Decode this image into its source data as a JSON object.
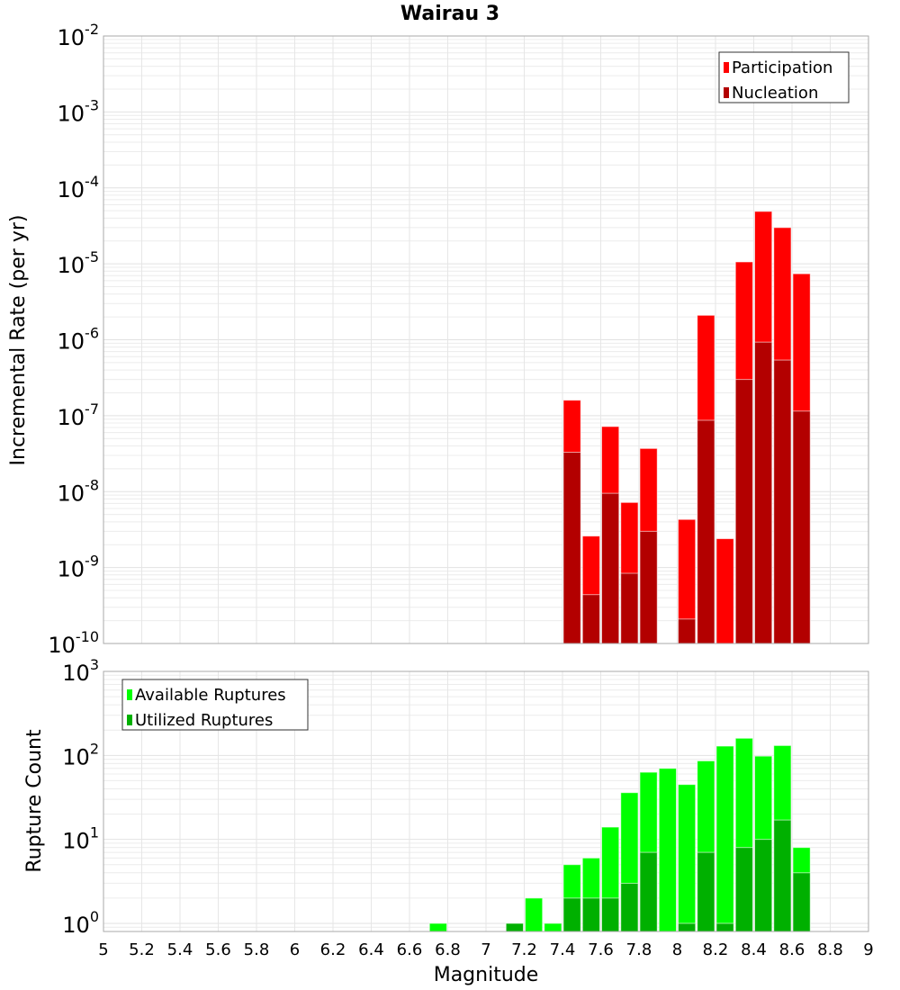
{
  "chart_data": [
    {
      "type": "bar",
      "title": "Wairau 3",
      "xlabel": "",
      "ylabel": "Incremental Rate (per yr)",
      "yscale": "log",
      "ylim": [
        1e-10,
        0.01
      ],
      "xlim": [
        5,
        9
      ],
      "bin_width": 0.1,
      "grid": true,
      "legend_position": "top-right",
      "x": [
        7.45,
        7.55,
        7.65,
        7.75,
        7.85,
        7.95,
        8.05,
        8.15,
        8.25,
        8.35,
        8.45,
        8.55,
        8.65
      ],
      "series": [
        {
          "name": "Participation",
          "color": "#ff0000",
          "values": [
            1.6e-07,
            2.6e-09,
            7.2e-08,
            7.2e-09,
            3.7e-08,
            null,
            4.3e-09,
            2.1e-06,
            2.4e-09,
            1.06e-05,
            4.9e-05,
            3e-05,
            7.4e-06
          ]
        },
        {
          "name": "Nucleation",
          "color": "#b30000",
          "values": [
            3.3e-08,
            4.4e-10,
            9.5e-09,
            8.4e-10,
            3e-09,
            null,
            2.1e-10,
            8.7e-08,
            null,
            3e-07,
            9.3e-07,
            5.4e-07,
            1.15e-07
          ]
        }
      ],
      "ytick_exponents": [
        "-2",
        "-3",
        "-4",
        "-5",
        "-6",
        "-7",
        "-8",
        "-9",
        "-10"
      ]
    },
    {
      "type": "bar",
      "xlabel": "Magnitude",
      "ylabel": "Rupture Count",
      "yscale": "log",
      "ylim": [
        0.8,
        1000
      ],
      "xlim": [
        5,
        9
      ],
      "bin_width": 0.1,
      "grid": true,
      "legend_position": "top-left",
      "x": [
        6.75,
        7.15,
        7.25,
        7.35,
        7.45,
        7.55,
        7.65,
        7.75,
        7.85,
        7.95,
        8.05,
        8.15,
        8.25,
        8.35,
        8.45,
        8.55,
        8.65
      ],
      "series": [
        {
          "name": "Available Ruptures",
          "color": "#00ff00",
          "values": [
            1,
            1,
            2,
            1,
            5,
            6,
            14,
            36,
            63,
            70,
            45,
            86,
            129,
            160,
            98,
            131,
            8
          ]
        },
        {
          "name": "Utilized Ruptures",
          "color": "#00b000",
          "values": [
            null,
            1,
            null,
            null,
            2,
            2,
            2,
            3,
            7,
            null,
            1,
            7,
            1,
            8,
            10,
            17,
            4
          ]
        }
      ],
      "ytick_exponents": [
        "3",
        "2",
        "1",
        "0"
      ],
      "xtick_labels": [
        "5",
        "5.2",
        "5.4",
        "5.6",
        "5.8",
        "6",
        "6.2",
        "6.4",
        "6.6",
        "6.8",
        "7",
        "7.2",
        "7.4",
        "7.6",
        "7.8",
        "8",
        "8.2",
        "8.4",
        "8.6",
        "8.8",
        "9"
      ]
    }
  ]
}
